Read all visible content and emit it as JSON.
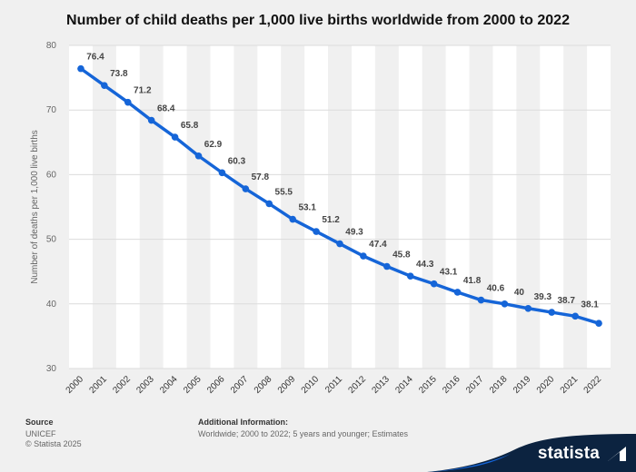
{
  "title": "Number of child deaths per 1,000 live births worldwide from 2000 to 2022",
  "colors": {
    "line": "#1565d8",
    "background": "#f0f0f0",
    "band": "#ffffff",
    "brand": "#0c2340"
  },
  "chart_data": {
    "type": "line",
    "x": [
      "2000",
      "2001",
      "2002",
      "2003",
      "2004",
      "2005",
      "2006",
      "2007",
      "2008",
      "2009",
      "2010",
      "2011",
      "2012",
      "2013",
      "2014",
      "2015",
      "2016",
      "2017",
      "2018",
      "2019",
      "2020",
      "2021",
      "2022"
    ],
    "series": [
      {
        "values": [
          76.4,
          73.8,
          71.2,
          68.4,
          65.8,
          62.9,
          60.3,
          57.8,
          55.5,
          53.1,
          51.2,
          49.3,
          47.4,
          45.8,
          44.3,
          43.1,
          41.8,
          40.6,
          40,
          39.3,
          38.7,
          38.1,
          37
        ]
      }
    ],
    "data_labels": [
      "76.4",
      "73.8",
      "71.2",
      "68.4",
      "65.8",
      "62.9",
      "60.3",
      "57.8",
      "55.5",
      "53.1",
      "51.2",
      "49.3",
      "47.4",
      "45.8",
      "44.3",
      "43.1",
      "41.8",
      "40.6",
      "40",
      "39.3",
      "38.7",
      "38.1",
      ""
    ],
    "ylabel": "Number of deaths per 1,000 live births",
    "xlabel": "",
    "ylim": [
      30,
      80
    ],
    "yticks": [
      "30",
      "40",
      "50",
      "60",
      "70",
      "80"
    ],
    "grid": true,
    "legend": "none"
  },
  "footer": {
    "source_heading": "Source",
    "source_text": "UNICEF",
    "copyright": "© Statista 2025",
    "info_heading": "Additional Information:",
    "info_text": "Worldwide; 2000 to 2022; 5 years and younger; Estimates"
  },
  "brand": {
    "name": "statista",
    "icon": "statista-logo-icon"
  }
}
